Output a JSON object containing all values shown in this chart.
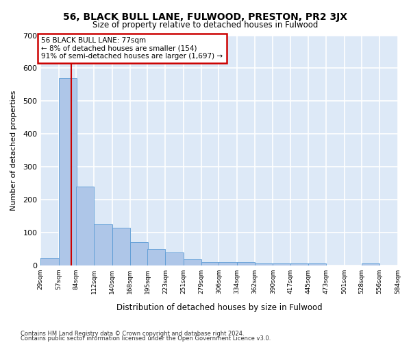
{
  "title": "56, BLACK BULL LANE, FULWOOD, PRESTON, PR2 3JX",
  "subtitle": "Size of property relative to detached houses in Fulwood",
  "xlabel": "Distribution of detached houses by size in Fulwood",
  "ylabel": "Number of detached properties",
  "bin_edges": [
    29,
    57,
    84,
    112,
    140,
    168,
    195,
    223,
    251,
    279,
    306,
    334,
    362,
    390,
    417,
    445,
    473,
    501,
    528,
    556,
    584
  ],
  "bar_heights": [
    23,
    570,
    240,
    125,
    115,
    70,
    50,
    40,
    18,
    10,
    10,
    10,
    5,
    5,
    5,
    5,
    0,
    0,
    5,
    0
  ],
  "bar_color": "#aec6e8",
  "bar_edge_color": "#5b9bd5",
  "bg_color": "#dde9f7",
  "grid_color": "#ffffff",
  "red_line_x": 77,
  "annotation_line1": "56 BLACK BULL LANE: 77sqm",
  "annotation_line2": "← 8% of detached houses are smaller (154)",
  "annotation_line3": "91% of semi-detached houses are larger (1,697) →",
  "annotation_box_facecolor": "#ffffff",
  "annotation_box_edgecolor": "#cc0000",
  "ylim": [
    0,
    700
  ],
  "yticks": [
    0,
    100,
    200,
    300,
    400,
    500,
    600,
    700
  ],
  "footer1": "Contains HM Land Registry data © Crown copyright and database right 2024.",
  "footer2": "Contains public sector information licensed under the Open Government Licence v3.0."
}
